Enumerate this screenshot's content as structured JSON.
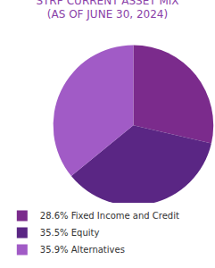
{
  "chart_data": {
    "type": "pie",
    "title": "STRP CURRENT ASSET MIX",
    "subtitle": "(AS OF JUNE 30, 2024)",
    "categories": [
      "28.6% Fixed Income and Credit",
      "35.5% Equity",
      "35.9% Alternatives"
    ],
    "values": [
      28.6,
      35.5,
      35.9
    ],
    "colors": [
      "#7b2b8c",
      "#5a2684",
      "#a15bc6"
    ],
    "legend": "bottom",
    "data_labels": false
  }
}
